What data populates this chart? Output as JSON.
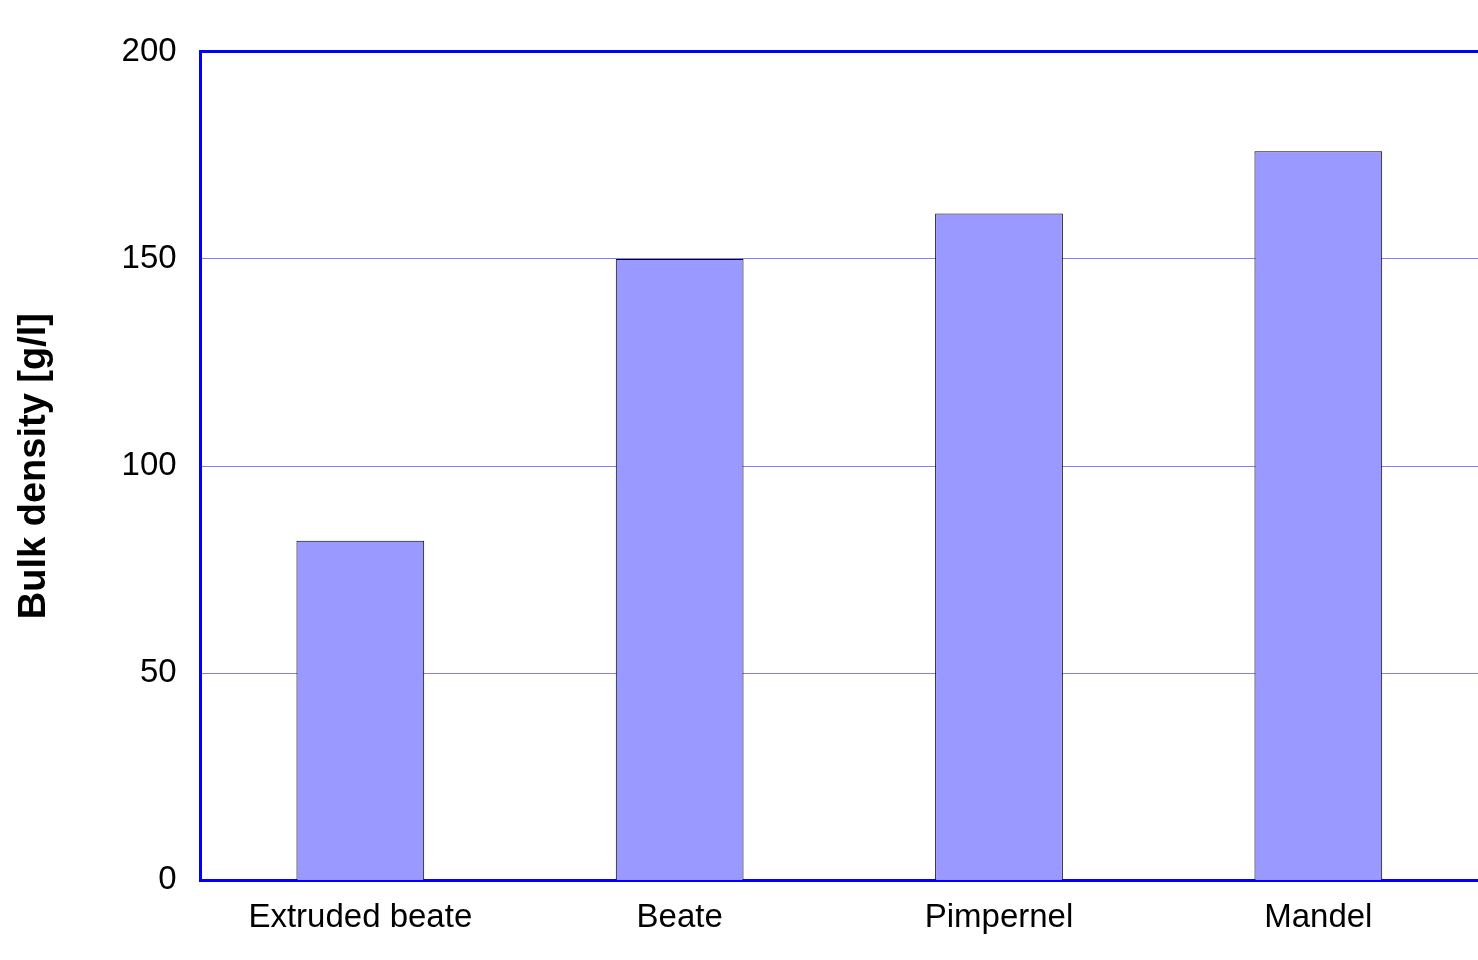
{
  "chart_data": {
    "type": "bar",
    "ylabel": "Bulk density [g/l]",
    "categories": [
      "Extruded beate",
      "Beate",
      "Pimpernel",
      "Mandel"
    ],
    "values": [
      82,
      150,
      161,
      176
    ],
    "color": "#9999ff",
    "ylim": [
      0,
      200
    ],
    "yticks": [
      0,
      50,
      100,
      150,
      200
    ],
    "grid": "y"
  }
}
